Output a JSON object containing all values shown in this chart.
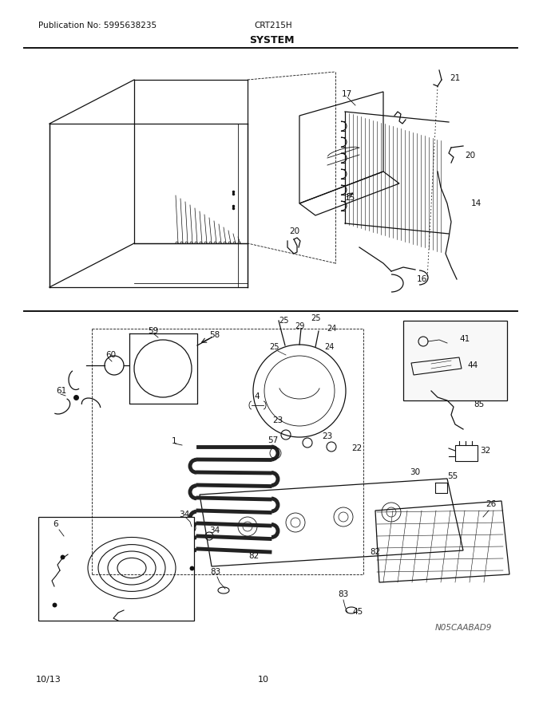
{
  "title": "SYSTEM",
  "pub_no": "Publication No: 5995638235",
  "model": "CRT215H",
  "date": "10/13",
  "page": "10",
  "watermark": "N05CAABAD9",
  "bg_color": "#ffffff",
  "line_color": "#111111",
  "fig_width": 6.8,
  "fig_height": 8.8,
  "dpi": 100
}
